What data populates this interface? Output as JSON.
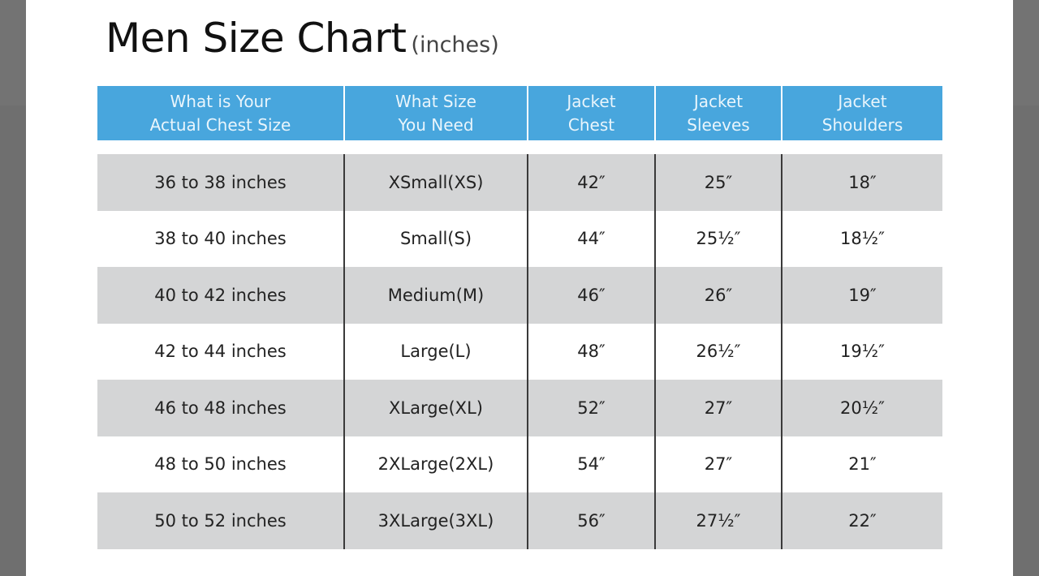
{
  "title": {
    "main": "Men Size Chart",
    "unit": "(inches)"
  },
  "colors": {
    "header": "#48a6dd",
    "shade": "#d4d5d6",
    "overlay": "#6f6f6f"
  },
  "headers": [
    "What is Your\nActual Chest Size",
    "What Size\nYou Need",
    "Jacket\nChest",
    "Jacket\nSleeves",
    "Jacket\nShoulders"
  ],
  "rows": [
    [
      "36 to 38 inches",
      "XSmall(XS)",
      "42″",
      "25″",
      "18″"
    ],
    [
      "38 to 40 inches",
      "Small(S)",
      "44″",
      "25½″",
      "18½″"
    ],
    [
      "40 to 42 inches",
      "Medium(M)",
      "46″",
      "26″",
      "19″"
    ],
    [
      "42 to 44 inches",
      "Large(L)",
      "48″",
      "26½″",
      "19½″"
    ],
    [
      "46 to 48 inches",
      "XLarge(XL)",
      "52″",
      "27″",
      "20½″"
    ],
    [
      "48 to 50 inches",
      "2XLarge(2XL)",
      "54″",
      "27″",
      "21″"
    ],
    [
      "50 to 52 inches",
      "3XLarge(3XL)",
      "56″",
      "27½″",
      "22″"
    ]
  ]
}
